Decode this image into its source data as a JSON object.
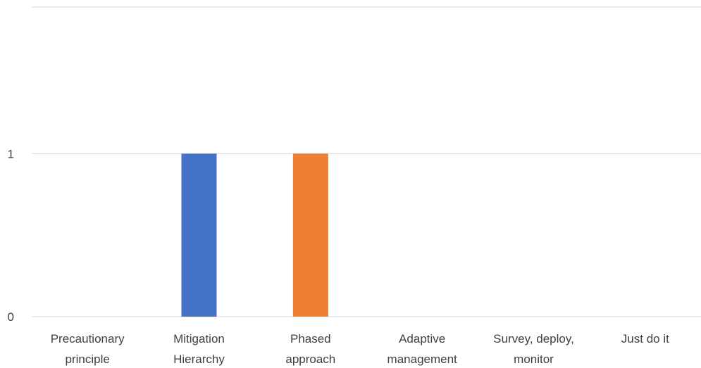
{
  "chart_data": {
    "type": "bar",
    "categories": [
      [
        "Precautionary",
        "principle"
      ],
      [
        "Mitigation",
        "Hierarchy"
      ],
      [
        "Phased",
        "approach"
      ],
      [
        "Adaptive",
        "management"
      ],
      [
        "Survey, deploy,",
        "monitor"
      ],
      [
        "Just do it"
      ]
    ],
    "values": [
      0,
      1,
      1,
      0,
      0,
      0
    ],
    "bar_colors": [
      "#4472C4",
      "#4472C4",
      "#ED7D31",
      "#4472C4",
      "#4472C4",
      "#4472C4"
    ],
    "y_ticks": [
      "0",
      "1"
    ],
    "y_tick_values": [
      0,
      1
    ],
    "ylim": [
      0,
      1.9
    ],
    "grid": true,
    "grid_color": "#D9D9D9",
    "title": "",
    "xlabel": "",
    "ylabel": ""
  }
}
